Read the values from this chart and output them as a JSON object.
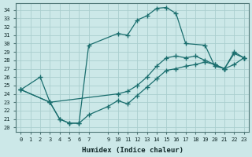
{
  "xlabel": "Humidex (Indice chaleur)",
  "bg_color": "#cce8e8",
  "line_color": "#1a6e6e",
  "grid_color": "#aacece",
  "xlim": [
    -0.5,
    23.5
  ],
  "ylim": [
    19.5,
    34.8
  ],
  "xticks": [
    0,
    1,
    2,
    3,
    4,
    5,
    6,
    7,
    9,
    10,
    11,
    12,
    13,
    14,
    15,
    16,
    17,
    18,
    19,
    20,
    21,
    22,
    23
  ],
  "yticks": [
    20,
    21,
    22,
    23,
    24,
    25,
    26,
    27,
    28,
    29,
    30,
    31,
    32,
    33,
    34
  ],
  "line1_x": [
    0,
    2,
    3,
    4,
    5,
    6,
    7,
    10,
    11,
    12,
    13,
    14,
    15,
    16,
    17,
    19,
    20,
    21,
    22,
    23
  ],
  "line1_y": [
    24.5,
    26.0,
    23.0,
    21.0,
    20.5,
    20.5,
    29.8,
    31.2,
    31.0,
    32.8,
    33.3,
    34.2,
    34.3,
    33.6,
    30.0,
    29.8,
    27.3,
    27.0,
    29.0,
    28.3
  ],
  "line2_x": [
    0,
    3,
    4,
    5,
    6,
    7,
    9,
    10,
    11,
    12,
    13,
    14,
    15,
    16,
    17,
    18,
    19,
    20,
    21,
    22,
    23
  ],
  "line2_y": [
    24.5,
    23.0,
    21.0,
    20.5,
    20.5,
    21.5,
    22.5,
    23.2,
    22.8,
    23.8,
    24.8,
    25.8,
    26.8,
    27.0,
    27.3,
    27.5,
    27.8,
    27.5,
    27.0,
    27.5,
    28.3
  ],
  "line3_x": [
    0,
    3,
    10,
    11,
    12,
    13,
    14,
    15,
    16,
    17,
    18,
    19,
    20,
    21,
    22,
    23
  ],
  "line3_y": [
    24.5,
    23.0,
    24.0,
    24.3,
    25.0,
    26.0,
    27.3,
    28.3,
    28.5,
    28.3,
    28.5,
    28.0,
    27.5,
    27.0,
    28.8,
    28.3
  ]
}
